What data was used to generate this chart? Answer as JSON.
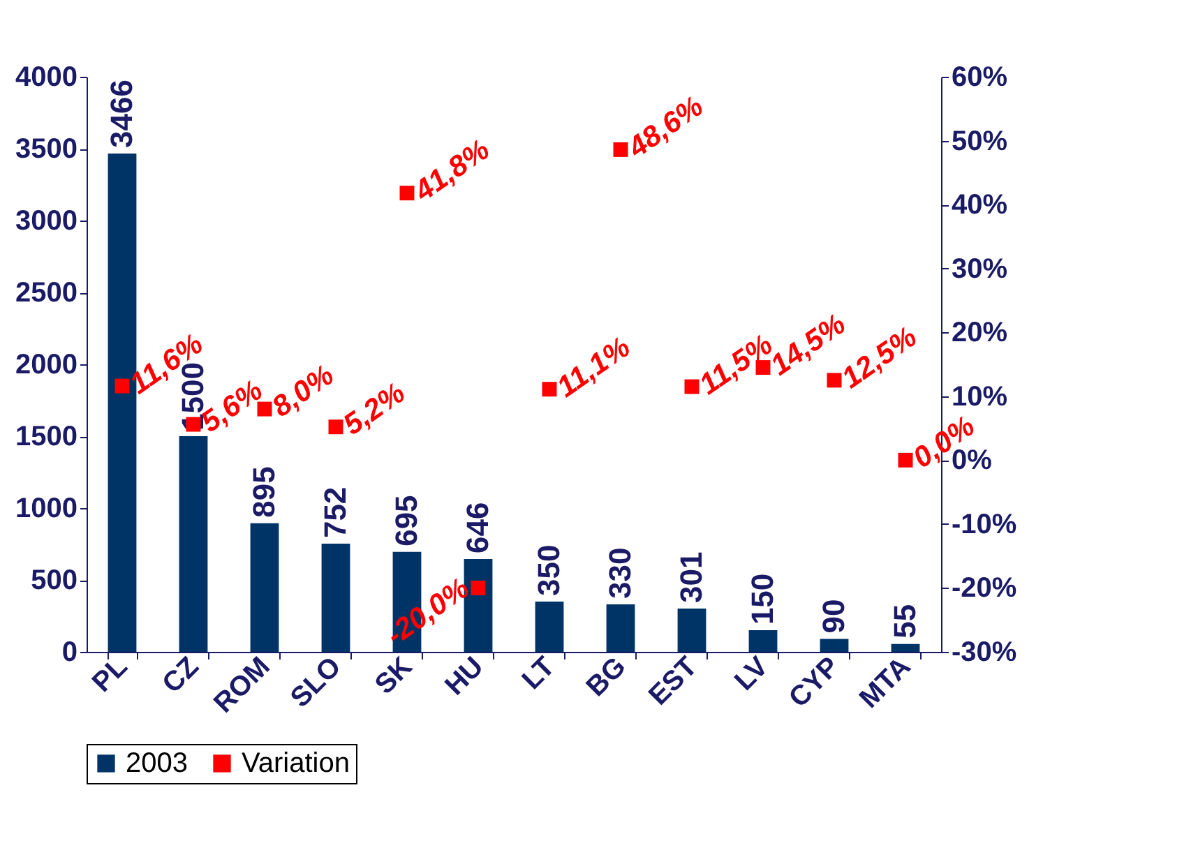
{
  "chart_data": {
    "type": "bar",
    "categories": [
      "PL",
      "CZ",
      "ROM",
      "SLO",
      "SK",
      "HU",
      "LT",
      "BG",
      "EST",
      "LV",
      "CYP",
      "MTA"
    ],
    "series": [
      {
        "name": "2003",
        "color": "#003366",
        "values": [
          3466,
          1500,
          895,
          752,
          695,
          646,
          350,
          330,
          301,
          150,
          90,
          55
        ],
        "value_labels": [
          "3466",
          "1500",
          "895",
          "752",
          "695",
          "646",
          "350",
          "330",
          "301",
          "150",
          "90",
          "55"
        ]
      },
      {
        "name": "Variation",
        "type": "scatter",
        "axis": "y2",
        "color": "#ff0000",
        "marker": "square",
        "values": [
          11.6,
          5.6,
          8.0,
          5.2,
          41.8,
          -20.0,
          11.1,
          48.6,
          11.5,
          14.5,
          12.5,
          0.0
        ],
        "value_labels": [
          "11,6%",
          "5,6%",
          "8,0%",
          "5,2%",
          "41,8%",
          "-20,0%",
          "11,1%",
          "48,6%",
          "11,5%",
          "14,5%",
          "12,5%",
          "0,0%"
        ]
      }
    ],
    "ylim": [
      0,
      4000
    ],
    "yticks": [
      0,
      500,
      1000,
      1500,
      2000,
      2500,
      3000,
      3500,
      4000
    ],
    "y2lim": [
      -30,
      60
    ],
    "y2ticks": [
      {
        "value": -30,
        "label": "-30%"
      },
      {
        "value": -20,
        "label": "-20%"
      },
      {
        "value": -10,
        "label": "-10%"
      },
      {
        "value": 0,
        "label": "0%"
      },
      {
        "value": 10,
        "label": "10%"
      },
      {
        "value": 20,
        "label": "20%"
      },
      {
        "value": 30,
        "label": "30%"
      },
      {
        "value": 40,
        "label": "40%"
      },
      {
        "value": 50,
        "label": "50%"
      },
      {
        "value": 60,
        "label": "60%"
      }
    ],
    "legend": "bottom"
  }
}
